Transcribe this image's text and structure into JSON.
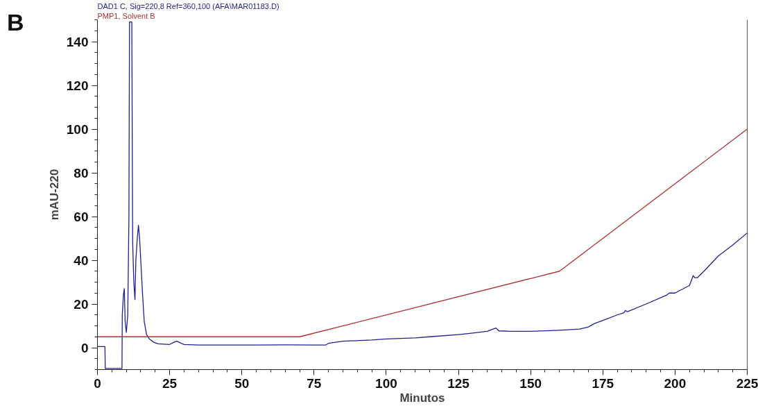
{
  "chart_data": {
    "type": "line",
    "xlabel": "Minutos",
    "ylabel": "mAU-220",
    "annotations": [
      "B"
    ],
    "xlim": [
      0,
      225
    ],
    "ylim": [
      -10,
      150
    ],
    "xticks": [
      0,
      25,
      50,
      75,
      100,
      125,
      150,
      175,
      200,
      225
    ],
    "yticks": [
      0,
      20,
      40,
      60,
      80,
      100,
      120,
      140
    ],
    "grid": false,
    "legend": "top left",
    "line_style": "solid",
    "marker": "none",
    "series": [
      {
        "name": "DAD1 C, Sig=220,8 Ref=360,100 (AFA\\MAR01183.D)",
        "color": "#1f1f8f",
        "x": [
          0,
          2.6,
          2.7,
          8.5,
          8.6,
          9,
          9.3,
          9.6,
          10,
          10.5,
          10.9,
          11.1,
          11.9,
          12.2,
          12.6,
          13,
          13.3,
          13.8,
          14.2,
          14.6,
          15,
          15.6,
          16.2,
          17,
          18,
          19.5,
          21,
          25,
          26.5,
          27.5,
          29,
          30,
          35,
          45,
          55,
          65,
          75,
          79,
          80,
          85,
          95,
          100,
          110,
          115,
          125,
          130,
          135,
          137,
          138,
          139,
          143,
          150,
          160,
          167,
          170,
          172,
          176,
          180,
          182.3,
          182.8,
          183.5,
          190,
          197,
          198,
          200,
          205,
          206.3,
          206.8,
          207.7,
          210,
          215,
          220,
          225
        ],
        "values": [
          0.5,
          0.5,
          -9.5,
          -9.5,
          15,
          24,
          27,
          12,
          7,
          15,
          60,
          149,
          149,
          48,
          30,
          22,
          40,
          50,
          56,
          50,
          40,
          25,
          12,
          6,
          4,
          2.5,
          1.8,
          1.5,
          2.5,
          3,
          2,
          1.5,
          1.2,
          1.2,
          1.2,
          1.3,
          1.2,
          1.2,
          2,
          3,
          3.5,
          4,
          4.5,
          5,
          6,
          6.7,
          7.5,
          8.5,
          9,
          7.7,
          7.5,
          7.5,
          8,
          8.5,
          9.5,
          11,
          13,
          15,
          16,
          17,
          16.5,
          20,
          24,
          25,
          25,
          28.5,
          33,
          32,
          32,
          35,
          42,
          47,
          52.5
        ]
      },
      {
        "name": "PMP1, Solvent B",
        "color": "#b03030",
        "x": [
          0,
          70,
          160,
          225
        ],
        "values": [
          5,
          5,
          35,
          100
        ]
      }
    ]
  }
}
